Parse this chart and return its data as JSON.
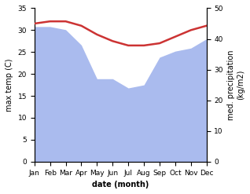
{
  "months": [
    "Jan",
    "Feb",
    "Mar",
    "Apr",
    "May",
    "Jun",
    "Jul",
    "Aug",
    "Sep",
    "Oct",
    "Nov",
    "Dec"
  ],
  "month_x": [
    1,
    2,
    3,
    4,
    5,
    6,
    7,
    8,
    9,
    10,
    11,
    12
  ],
  "temperature": [
    31.5,
    32.0,
    32.0,
    31.0,
    29.0,
    27.5,
    26.5,
    26.5,
    27.0,
    28.5,
    30.0,
    31.0
  ],
  "precipitation": [
    44,
    44,
    43,
    38,
    27,
    27,
    24,
    25,
    34,
    36,
    37,
    40
  ],
  "temp_color": "#cc3333",
  "precip_color": "#aabbee",
  "left_ylim": [
    0,
    35
  ],
  "right_ylim": [
    0,
    50
  ],
  "left_yticks": [
    0,
    5,
    10,
    15,
    20,
    25,
    30,
    35
  ],
  "right_yticks": [
    0,
    10,
    20,
    30,
    40,
    50
  ],
  "xlabel": "date (month)",
  "ylabel_left": "max temp (C)",
  "ylabel_right": "med. precipitation\n(kg/m2)",
  "background_color": "#ffffff",
  "temp_linewidth": 1.8
}
